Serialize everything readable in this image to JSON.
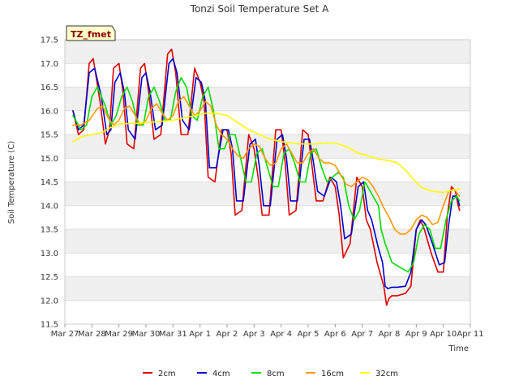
{
  "chart_data": {
    "type": "line",
    "title": "Tonzi Soil Temperature Set A",
    "xlabel": "Time",
    "ylabel": "Soil Temperature (C)",
    "badge": "TZ_fmet",
    "xlim": [
      0,
      15
    ],
    "ylim": [
      11.5,
      17.5
    ],
    "yticks": [
      11.5,
      12.0,
      12.5,
      13.0,
      13.5,
      14.0,
      14.5,
      15.0,
      15.5,
      16.0,
      16.5,
      17.0,
      17.5
    ],
    "ytick_labels": [
      "11.5",
      "12.0",
      "12.5",
      "13.0",
      "13.5",
      "14.0",
      "14.5",
      "15.0",
      "15.5",
      "16.0",
      "16.5",
      "17.0",
      "17.5"
    ],
    "xticks": [
      0,
      1,
      2,
      3,
      4,
      5,
      6,
      7,
      8,
      9,
      10,
      11,
      12,
      13,
      14,
      15
    ],
    "xtick_labels": [
      "Mar 27",
      "Mar 28",
      "Mar 29",
      "Mar 30",
      "Mar 31",
      "Apr 1",
      "Apr 2",
      "Apr 3",
      "Apr 4",
      "Apr 5",
      "Apr 6",
      "Apr 7",
      "Apr 8",
      "Apr 9",
      "Apr 10",
      "Apr 11"
    ],
    "band_color": "#f0f0f0",
    "grid_color": "#dddddd",
    "series": [
      {
        "name": "2cm",
        "color": "#dd0000",
        "x": [
          0.3,
          0.5,
          0.7,
          0.9,
          1.05,
          1.3,
          1.5,
          1.65,
          1.8,
          2.0,
          2.15,
          2.3,
          2.55,
          2.8,
          2.95,
          3.1,
          3.3,
          3.55,
          3.8,
          3.95,
          4.1,
          4.3,
          4.55,
          4.8,
          5.0,
          5.15,
          5.3,
          5.55,
          5.8,
          6.0,
          6.15,
          6.3,
          6.55,
          6.8,
          7.0,
          7.15,
          7.3,
          7.55,
          7.8,
          8.0,
          8.15,
          8.3,
          8.55,
          8.8,
          9.0,
          9.15,
          9.3,
          9.55,
          9.8,
          10.0,
          10.15,
          10.3,
          10.55,
          10.8,
          11.0,
          11.15,
          11.3,
          11.55,
          11.7,
          11.8,
          11.9,
          12.0,
          12.1,
          12.3,
          12.6,
          12.8,
          13.0,
          13.15,
          13.3,
          13.55,
          13.8,
          14.0,
          14.15,
          14.3,
          14.45,
          14.55,
          14.6
        ],
        "y": [
          16.0,
          15.5,
          15.6,
          17.0,
          17.1,
          16.2,
          15.3,
          15.6,
          16.9,
          17.0,
          16.4,
          15.3,
          15.2,
          16.9,
          17.0,
          16.4,
          15.4,
          15.5,
          17.2,
          17.3,
          16.8,
          15.5,
          15.5,
          16.9,
          16.6,
          16.2,
          14.6,
          14.5,
          15.6,
          15.6,
          15.1,
          13.8,
          13.9,
          15.5,
          15.2,
          14.6,
          13.8,
          13.8,
          15.6,
          15.6,
          14.9,
          13.8,
          13.9,
          15.6,
          15.5,
          14.8,
          14.1,
          14.1,
          14.6,
          14.4,
          13.8,
          12.9,
          13.2,
          14.6,
          14.4,
          13.7,
          13.5,
          12.8,
          12.5,
          12.3,
          11.9,
          12.05,
          12.1,
          12.1,
          12.15,
          12.3,
          13.5,
          13.7,
          13.5,
          13.0,
          12.6,
          12.6,
          13.8,
          14.4,
          14.3,
          14.0,
          13.9
        ]
      },
      {
        "name": "4cm",
        "color": "#0000cc",
        "x": [
          0.3,
          0.5,
          0.7,
          0.9,
          1.1,
          1.35,
          1.55,
          1.7,
          1.85,
          2.05,
          2.2,
          2.35,
          2.6,
          2.85,
          3.0,
          3.15,
          3.35,
          3.6,
          3.85,
          4.0,
          4.15,
          4.35,
          4.6,
          4.85,
          5.05,
          5.2,
          5.35,
          5.6,
          5.85,
          6.05,
          6.2,
          6.35,
          6.6,
          6.85,
          7.05,
          7.2,
          7.35,
          7.6,
          7.85,
          8.05,
          8.2,
          8.35,
          8.6,
          8.85,
          9.05,
          9.2,
          9.35,
          9.6,
          9.85,
          10.05,
          10.2,
          10.35,
          10.6,
          10.85,
          11.05,
          11.2,
          11.35,
          11.6,
          11.75,
          11.85,
          11.95,
          12.1,
          12.3,
          12.6,
          12.8,
          13.0,
          13.2,
          13.35,
          13.6,
          13.85,
          14.05,
          14.2,
          14.35,
          14.5,
          14.6
        ],
        "y": [
          16.0,
          15.6,
          15.7,
          16.8,
          16.9,
          16.3,
          15.5,
          15.6,
          16.6,
          16.8,
          16.4,
          15.6,
          15.4,
          16.7,
          16.8,
          16.4,
          15.6,
          15.7,
          17.0,
          17.1,
          16.8,
          15.8,
          15.6,
          16.7,
          16.6,
          16.2,
          14.8,
          14.8,
          15.6,
          15.6,
          15.2,
          14.1,
          14.1,
          15.3,
          15.4,
          14.8,
          14.0,
          14.0,
          15.4,
          15.5,
          15.0,
          14.1,
          14.1,
          15.4,
          15.4,
          14.9,
          14.3,
          14.2,
          14.6,
          14.5,
          14.0,
          13.3,
          13.4,
          14.4,
          14.5,
          13.9,
          13.7,
          13.1,
          12.8,
          12.3,
          12.25,
          12.28,
          12.28,
          12.3,
          12.6,
          13.5,
          13.7,
          13.6,
          13.2,
          12.75,
          12.8,
          13.6,
          14.2,
          14.2,
          14.0
        ]
      },
      {
        "name": "8cm",
        "color": "#00dd00",
        "x": [
          0.3,
          0.6,
          0.8,
          1.0,
          1.2,
          1.5,
          1.7,
          1.9,
          2.1,
          2.3,
          2.5,
          2.7,
          2.9,
          3.1,
          3.3,
          3.5,
          3.7,
          3.9,
          4.1,
          4.3,
          4.5,
          4.7,
          4.9,
          5.1,
          5.3,
          5.5,
          5.7,
          5.9,
          6.1,
          6.3,
          6.5,
          6.7,
          6.9,
          7.1,
          7.3,
          7.5,
          7.7,
          7.9,
          8.1,
          8.3,
          8.5,
          8.7,
          8.9,
          9.1,
          9.3,
          9.5,
          9.7,
          9.9,
          10.1,
          10.3,
          10.5,
          10.7,
          10.9,
          11.1,
          11.3,
          11.5,
          11.6,
          11.7,
          11.85,
          12.1,
          12.4,
          12.7,
          12.9,
          13.1,
          13.3,
          13.5,
          13.7,
          13.9,
          14.1,
          14.3,
          14.5,
          14.6
        ],
        "y": [
          15.9,
          15.6,
          15.7,
          16.3,
          16.5,
          16.1,
          15.7,
          15.9,
          16.3,
          16.5,
          16.2,
          15.7,
          15.7,
          16.3,
          16.5,
          16.2,
          15.8,
          15.8,
          16.4,
          16.7,
          16.5,
          15.9,
          15.8,
          16.3,
          16.5,
          16.0,
          15.2,
          15.2,
          15.5,
          15.5,
          15.0,
          14.5,
          14.5,
          15.1,
          15.2,
          14.8,
          14.4,
          14.4,
          15.1,
          15.2,
          14.9,
          14.5,
          14.5,
          15.1,
          15.2,
          14.8,
          14.5,
          14.6,
          14.7,
          14.6,
          14.0,
          13.7,
          13.9,
          14.5,
          14.3,
          14.1,
          14.0,
          13.5,
          13.2,
          12.8,
          12.7,
          12.6,
          12.8,
          13.4,
          13.6,
          13.5,
          13.1,
          13.1,
          13.7,
          14.1,
          14.2,
          14.1
        ]
      },
      {
        "name": "16cm",
        "color": "#ff9900",
        "x": [
          0.3,
          0.6,
          0.9,
          1.2,
          1.4,
          1.6,
          1.8,
          2.0,
          2.2,
          2.4,
          2.6,
          2.8,
          3.0,
          3.2,
          3.4,
          3.6,
          3.8,
          4.0,
          4.2,
          4.4,
          4.6,
          4.8,
          5.0,
          5.2,
          5.4,
          5.6,
          5.8,
          6.0,
          6.2,
          6.4,
          6.6,
          6.8,
          7.0,
          7.2,
          7.4,
          7.6,
          7.8,
          8.0,
          8.2,
          8.4,
          8.6,
          8.8,
          9.0,
          9.2,
          9.4,
          9.6,
          9.8,
          10.0,
          10.2,
          10.4,
          10.6,
          10.8,
          11.0,
          11.2,
          11.4,
          11.6,
          11.8,
          12.0,
          12.2,
          12.4,
          12.6,
          12.8,
          13.0,
          13.2,
          13.4,
          13.6,
          13.8,
          14.0,
          14.2,
          14.4,
          14.6
        ],
        "y": [
          15.7,
          15.7,
          15.8,
          16.05,
          16.1,
          15.85,
          15.7,
          15.8,
          16.05,
          16.1,
          15.9,
          15.7,
          15.8,
          16.05,
          16.15,
          15.95,
          15.8,
          15.9,
          16.2,
          16.3,
          16.1,
          15.9,
          16.0,
          16.2,
          16.1,
          15.7,
          15.5,
          15.4,
          15.2,
          15.05,
          15.0,
          15.2,
          15.3,
          15.25,
          15.0,
          14.85,
          14.9,
          15.2,
          15.3,
          15.1,
          14.9,
          14.9,
          15.1,
          15.2,
          15.0,
          14.9,
          14.9,
          14.85,
          14.65,
          14.45,
          14.4,
          14.5,
          14.6,
          14.55,
          14.4,
          14.2,
          13.95,
          13.75,
          13.5,
          13.4,
          13.4,
          13.5,
          13.7,
          13.8,
          13.75,
          13.6,
          13.65,
          14.0,
          14.3,
          14.35,
          14.2
        ]
      },
      {
        "name": "32cm",
        "color": "#ffff00",
        "x": [
          0.3,
          0.6,
          1.0,
          1.4,
          1.7,
          2.0,
          2.4,
          2.8,
          3.2,
          3.6,
          4.0,
          4.4,
          4.8,
          5.2,
          5.6,
          6.0,
          6.4,
          6.8,
          7.2,
          7.6,
          8.0,
          8.4,
          8.8,
          9.2,
          9.6,
          10.0,
          10.4,
          10.8,
          11.2,
          11.6,
          12.0,
          12.3,
          12.6,
          12.9,
          13.2,
          13.6,
          14.0,
          14.3,
          14.6
        ],
        "y": [
          15.35,
          15.45,
          15.5,
          15.55,
          15.65,
          15.72,
          15.73,
          15.74,
          15.76,
          15.78,
          15.8,
          15.85,
          15.9,
          15.95,
          15.95,
          15.9,
          15.75,
          15.6,
          15.5,
          15.4,
          15.35,
          15.32,
          15.3,
          15.3,
          15.32,
          15.32,
          15.25,
          15.12,
          15.05,
          14.98,
          14.95,
          14.9,
          14.75,
          14.55,
          14.38,
          14.3,
          14.28,
          14.32,
          14.35
        ]
      }
    ]
  }
}
